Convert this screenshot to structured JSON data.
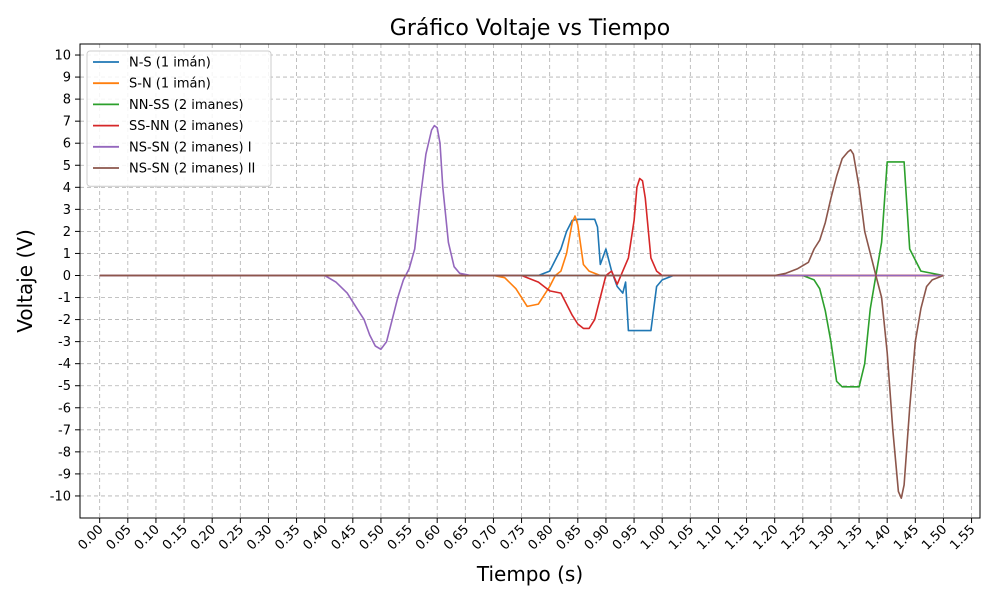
{
  "chart_data": {
    "type": "line",
    "title": "Gráfico Voltaje vs Tiempo",
    "xlabel": "Tiempo (s)",
    "ylabel": "Voltaje (V)",
    "xlim": [
      -0.035,
      1.565
    ],
    "ylim": [
      -11,
      10.5
    ],
    "grid": true,
    "legend_position": "top-left",
    "x_ticks": [
      "0.00",
      "0.05",
      "0.10",
      "0.15",
      "0.20",
      "0.25",
      "0.30",
      "0.35",
      "0.40",
      "0.45",
      "0.50",
      "0.55",
      "0.60",
      "0.65",
      "0.70",
      "0.75",
      "0.80",
      "0.85",
      "0.90",
      "0.95",
      "1.00",
      "1.05",
      "1.10",
      "1.15",
      "1.20",
      "1.25",
      "1.30",
      "1.35",
      "1.40",
      "1.45",
      "1.50",
      "1.55"
    ],
    "y_ticks": [
      "10",
      "9",
      "8",
      "7",
      "6",
      "5",
      "4",
      "3",
      "2",
      "1",
      "0",
      "-1",
      "-2",
      "-3",
      "-4",
      "-5",
      "-6",
      "-7",
      "-8",
      "-9",
      "-10"
    ],
    "series": [
      {
        "name": "N-S (1 imán)",
        "color": "#1f77b4",
        "x": [
          0,
          0.78,
          0.8,
          0.82,
          0.83,
          0.84,
          0.85,
          0.86,
          0.87,
          0.88,
          0.885,
          0.89,
          0.9,
          0.91,
          0.92,
          0.93,
          0.935,
          0.94,
          0.95,
          0.96,
          0.97,
          0.98,
          0.99,
          1.0,
          1.02,
          1.5
        ],
        "y": [
          0,
          0,
          0.2,
          1.2,
          2.0,
          2.5,
          2.55,
          2.55,
          2.55,
          2.55,
          2.2,
          0.5,
          1.2,
          0.2,
          -0.5,
          -0.8,
          -0.3,
          -2.5,
          -2.5,
          -2.5,
          -2.5,
          -2.5,
          -0.5,
          -0.2,
          0,
          0
        ]
      },
      {
        "name": "S-N (1 imán)",
        "color": "#ff7f0e",
        "x": [
          0,
          0.7,
          0.72,
          0.74,
          0.76,
          0.78,
          0.8,
          0.81,
          0.82,
          0.83,
          0.84,
          0.845,
          0.85,
          0.86,
          0.87,
          0.89,
          0.91,
          1.5
        ],
        "y": [
          0,
          0,
          -0.1,
          -0.6,
          -1.4,
          -1.3,
          -0.5,
          0,
          0.2,
          1.0,
          2.4,
          2.7,
          2.3,
          0.5,
          0.2,
          0,
          0,
          0
        ]
      },
      {
        "name": "NN-SS (2 imanes)",
        "color": "#2ca02c",
        "x": [
          0,
          1.25,
          1.27,
          1.28,
          1.29,
          1.3,
          1.31,
          1.32,
          1.34,
          1.35,
          1.36,
          1.37,
          1.38,
          1.39,
          1.4,
          1.41,
          1.42,
          1.43,
          1.44,
          1.46,
          1.5
        ],
        "y": [
          0,
          0,
          -0.2,
          -0.6,
          -1.6,
          -3.0,
          -4.8,
          -5.05,
          -5.05,
          -5.05,
          -4.0,
          -1.5,
          0,
          1.5,
          5.15,
          5.15,
          5.15,
          5.15,
          1.2,
          0.2,
          0
        ]
      },
      {
        "name": "SS-NN (2 imanes)",
        "color": "#d62728",
        "x": [
          0,
          0.75,
          0.78,
          0.8,
          0.82,
          0.84,
          0.85,
          0.86,
          0.87,
          0.88,
          0.89,
          0.9,
          0.91,
          0.92,
          0.93,
          0.94,
          0.95,
          0.955,
          0.96,
          0.965,
          0.97,
          0.98,
          0.99,
          1.0,
          1.5
        ],
        "y": [
          0,
          0,
          -0.3,
          -0.7,
          -0.8,
          -1.8,
          -2.2,
          -2.4,
          -2.4,
          -2.0,
          -1.0,
          0,
          0.2,
          -0.4,
          0.2,
          0.8,
          2.5,
          4.0,
          4.4,
          4.3,
          3.5,
          0.8,
          0.2,
          0,
          0
        ]
      },
      {
        "name": "NS-SN (2 imanes) I",
        "color": "#9467bd",
        "x": [
          0,
          0.4,
          0.42,
          0.44,
          0.46,
          0.47,
          0.48,
          0.49,
          0.5,
          0.51,
          0.52,
          0.53,
          0.54,
          0.55,
          0.56,
          0.57,
          0.58,
          0.59,
          0.595,
          0.6,
          0.605,
          0.61,
          0.62,
          0.63,
          0.64,
          0.66,
          0.7,
          1.5
        ],
        "y": [
          0,
          0,
          -0.3,
          -0.8,
          -1.6,
          -2.0,
          -2.7,
          -3.2,
          -3.35,
          -3.0,
          -2.0,
          -1.0,
          -0.2,
          0.3,
          1.2,
          3.5,
          5.5,
          6.6,
          6.8,
          6.7,
          6.0,
          4.0,
          1.5,
          0.4,
          0.1,
          0,
          0,
          0
        ]
      },
      {
        "name": "NS-SN (2 imanes) II",
        "color": "#8c564b",
        "x": [
          0,
          1.2,
          1.22,
          1.24,
          1.26,
          1.27,
          1.28,
          1.29,
          1.3,
          1.31,
          1.32,
          1.33,
          1.335,
          1.34,
          1.35,
          1.36,
          1.37,
          1.38,
          1.39,
          1.4,
          1.41,
          1.42,
          1.425,
          1.43,
          1.44,
          1.45,
          1.46,
          1.47,
          1.48,
          1.5
        ],
        "y": [
          0,
          0,
          0.1,
          0.3,
          0.6,
          1.2,
          1.6,
          2.4,
          3.5,
          4.5,
          5.3,
          5.6,
          5.7,
          5.5,
          4.0,
          2.0,
          1.0,
          0,
          -1.0,
          -3.5,
          -7.0,
          -9.8,
          -10.1,
          -9.5,
          -6.0,
          -3.0,
          -1.5,
          -0.5,
          -0.2,
          0
        ]
      }
    ]
  }
}
